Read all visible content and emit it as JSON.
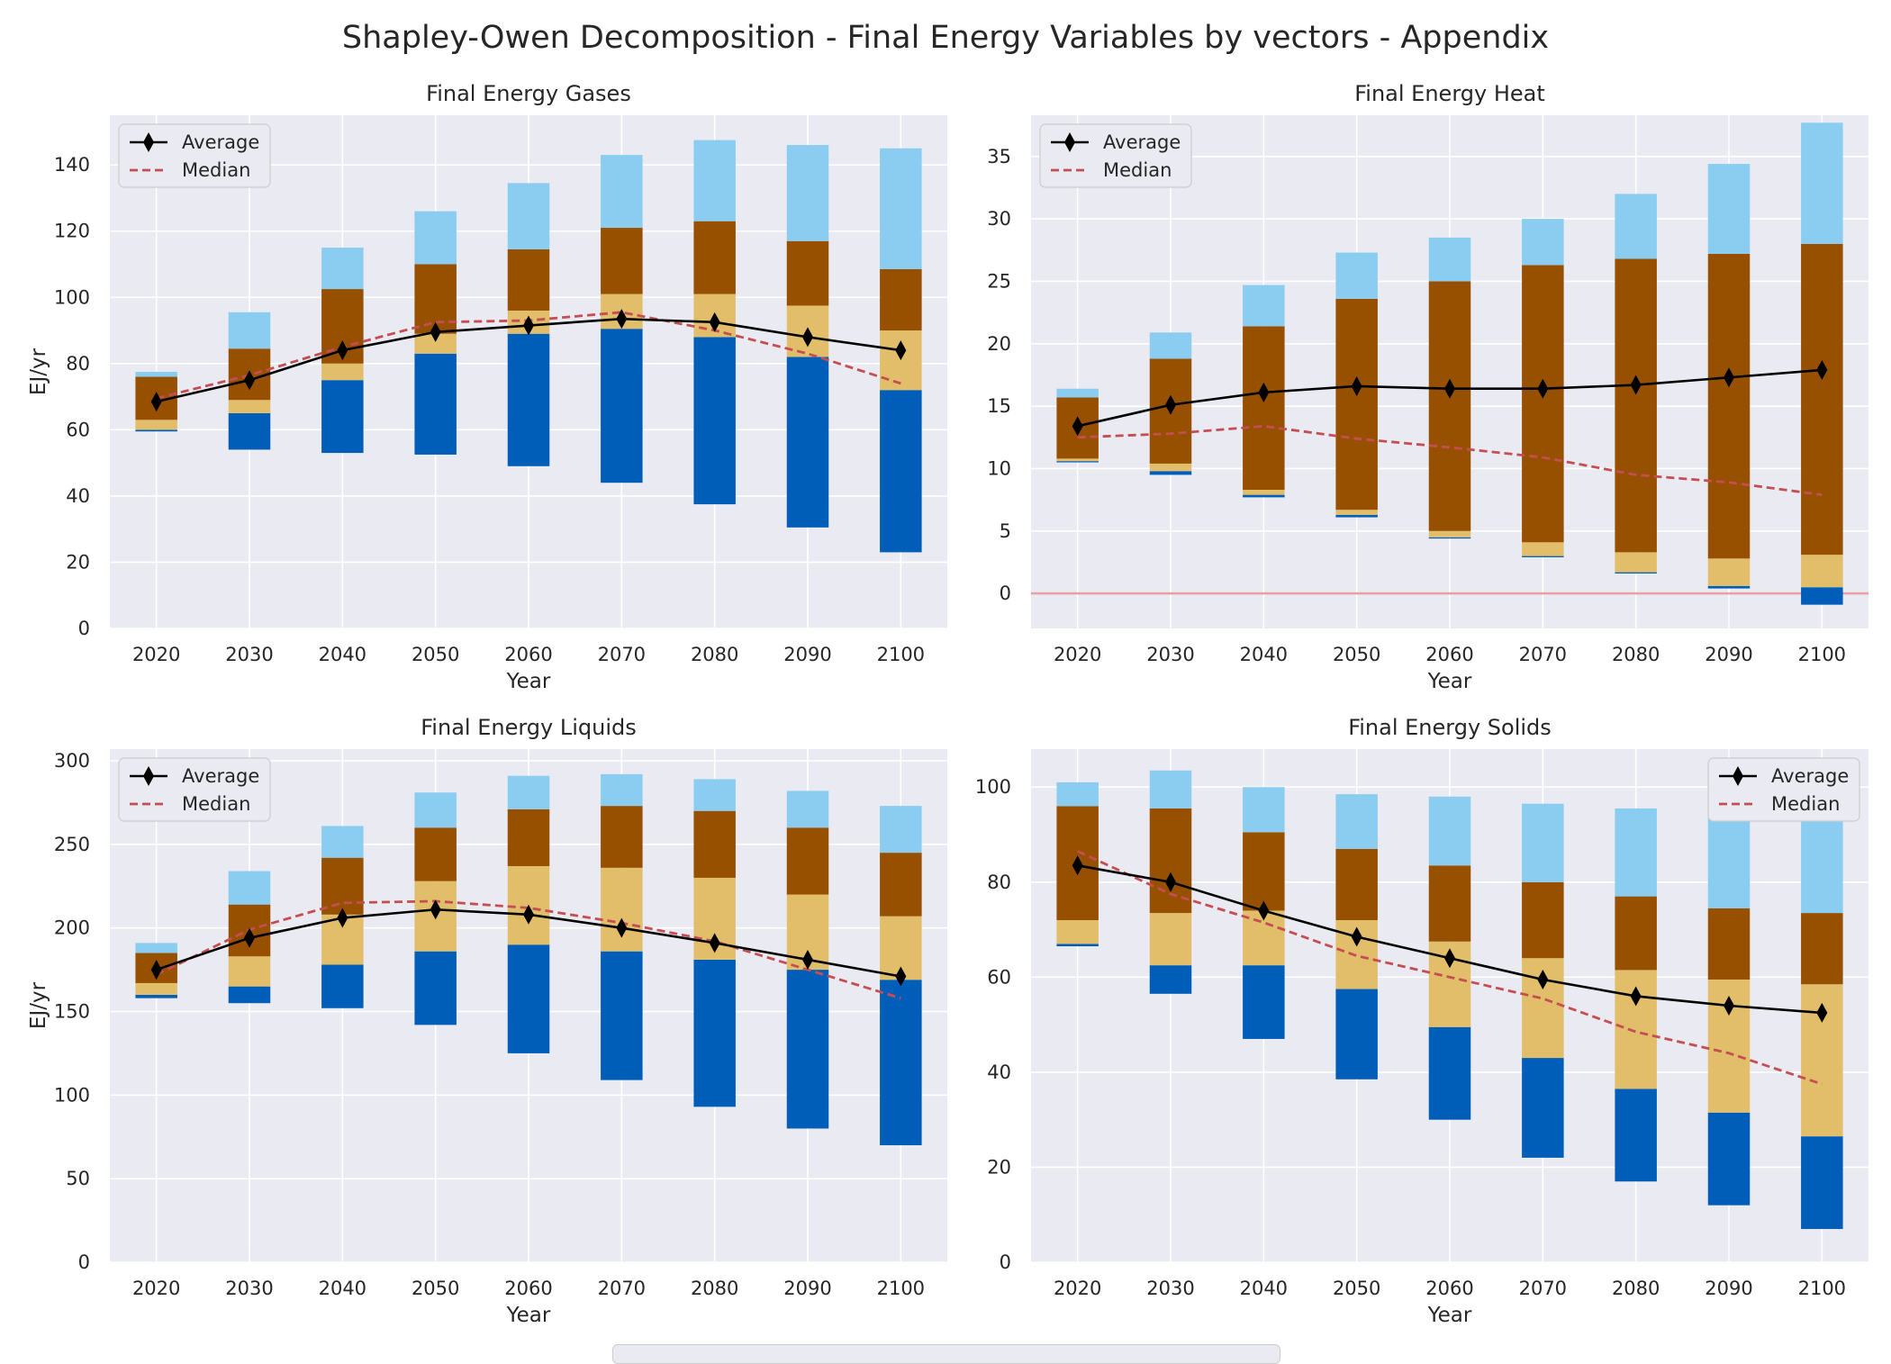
{
  "title": "Shapley-Owen Decomposition - Final Energy Variables by vectors - Appendix",
  "colors": {
    "panel_bg": "#EAEAF2",
    "grid": "#FFFFFF",
    "dark_blue": "#005EB8",
    "tan": "#E2BE6B",
    "brown": "#974F00",
    "light_blue": "#8ACDF0",
    "average_line": "#000000",
    "median_line": "#C44E52",
    "zero_line": "#E8A0A0"
  },
  "chart_data": [
    {
      "type": "bar",
      "title": "Final Energy Gases",
      "xlabel": "Year",
      "ylabel": "EJ/yr",
      "categories": [
        "2020",
        "2030",
        "2040",
        "2050",
        "2060",
        "2070",
        "2080",
        "2090",
        "2100"
      ],
      "ylim": [
        0,
        155
      ],
      "yticks": [
        0,
        20,
        40,
        60,
        80,
        100,
        120,
        140
      ],
      "grid": true,
      "legend_placement": "top-left",
      "stacks": [
        {
          "color": "dark_blue",
          "ranges": [
            [
              59.5,
              60
            ],
            [
              54,
              65
            ],
            [
              53,
              75
            ],
            [
              52.5,
              83
            ],
            [
              49,
              89
            ],
            [
              44,
              90.5
            ],
            [
              37.5,
              88
            ],
            [
              30.5,
              82
            ],
            [
              23,
              72
            ]
          ]
        },
        {
          "color": "tan",
          "ranges": [
            [
              60,
              63
            ],
            [
              65,
              69
            ],
            [
              75,
              80
            ],
            [
              83,
              89
            ],
            [
              89,
              96
            ],
            [
              90.5,
              101
            ],
            [
              88,
              101
            ],
            [
              82,
              97.5
            ],
            [
              72,
              90
            ]
          ]
        },
        {
          "color": "brown",
          "ranges": [
            [
              63,
              76
            ],
            [
              69,
              84.5
            ],
            [
              80,
              102.5
            ],
            [
              89,
              110
            ],
            [
              96,
              114.5
            ],
            [
              101,
              121
            ],
            [
              101,
              123
            ],
            [
              97.5,
              117
            ],
            [
              90,
              108.5
            ]
          ]
        },
        {
          "color": "light_blue",
          "ranges": [
            [
              76,
              77.5
            ],
            [
              84.5,
              95.5
            ],
            [
              102.5,
              115
            ],
            [
              110,
              126
            ],
            [
              114.5,
              134.5
            ],
            [
              121,
              143
            ],
            [
              123,
              147.5
            ],
            [
              117,
              146
            ],
            [
              108.5,
              145
            ]
          ]
        }
      ],
      "series": [
        {
          "name": "Average",
          "values": [
            68.5,
            75,
            84,
            89.5,
            91.5,
            93.5,
            92.5,
            88,
            84
          ]
        },
        {
          "name": "Median",
          "values": [
            69.5,
            76.5,
            85,
            92.5,
            93,
            95.5,
            90,
            83,
            74
          ]
        }
      ]
    },
    {
      "type": "bar",
      "title": "Final Energy Heat",
      "xlabel": "Year",
      "ylabel": "",
      "categories": [
        "2020",
        "2030",
        "2040",
        "2050",
        "2060",
        "2070",
        "2080",
        "2090",
        "2100"
      ],
      "ylim": [
        -2.8,
        38.3
      ],
      "yticks": [
        0,
        5,
        10,
        15,
        20,
        25,
        30,
        35
      ],
      "grid": true,
      "zero_line": true,
      "legend_placement": "top-left",
      "stacks": [
        {
          "color": "dark_blue",
          "ranges": [
            [
              10.5,
              10.6
            ],
            [
              9.5,
              9.8
            ],
            [
              7.7,
              7.9
            ],
            [
              6.1,
              6.3
            ],
            [
              4.4,
              4.5
            ],
            [
              2.9,
              3.0
            ],
            [
              1.6,
              1.7
            ],
            [
              0.4,
              0.6
            ],
            [
              -0.9,
              0.5
            ]
          ]
        },
        {
          "color": "tan",
          "ranges": [
            [
              10.6,
              10.8
            ],
            [
              9.8,
              10.4
            ],
            [
              7.9,
              8.3
            ],
            [
              6.3,
              6.7
            ],
            [
              4.5,
              5.0
            ],
            [
              3.0,
              4.1
            ],
            [
              1.7,
              3.3
            ],
            [
              0.6,
              2.8
            ],
            [
              0.5,
              3.1
            ]
          ]
        },
        {
          "color": "brown",
          "ranges": [
            [
              10.8,
              15.7
            ],
            [
              10.4,
              18.8
            ],
            [
              8.3,
              21.4
            ],
            [
              6.7,
              23.6
            ],
            [
              5.0,
              25.0
            ],
            [
              4.1,
              26.3
            ],
            [
              3.3,
              26.8
            ],
            [
              2.8,
              27.2
            ],
            [
              3.1,
              28.0
            ]
          ]
        },
        {
          "color": "light_blue",
          "ranges": [
            [
              15.7,
              16.4
            ],
            [
              18.8,
              20.9
            ],
            [
              21.4,
              24.7
            ],
            [
              23.6,
              27.3
            ],
            [
              25.0,
              28.5
            ],
            [
              26.3,
              30.0
            ],
            [
              26.8,
              32.0
            ],
            [
              27.2,
              34.4
            ],
            [
              28.0,
              37.7
            ]
          ]
        }
      ],
      "series": [
        {
          "name": "Average",
          "values": [
            13.4,
            15.1,
            16.1,
            16.6,
            16.4,
            16.4,
            16.7,
            17.3,
            17.9
          ]
        },
        {
          "name": "Median",
          "values": [
            12.5,
            12.8,
            13.4,
            12.4,
            11.7,
            10.9,
            9.5,
            8.9,
            7.9
          ]
        }
      ]
    },
    {
      "type": "bar",
      "title": "Final Energy Liquids",
      "xlabel": "Year",
      "ylabel": "EJ/yr",
      "categories": [
        "2020",
        "2030",
        "2040",
        "2050",
        "2060",
        "2070",
        "2080",
        "2090",
        "2100"
      ],
      "ylim": [
        0,
        307
      ],
      "yticks": [
        0,
        50,
        100,
        150,
        200,
        250,
        300
      ],
      "grid": true,
      "legend_placement": "top-left",
      "stacks": [
        {
          "color": "dark_blue",
          "ranges": [
            [
              158,
              160
            ],
            [
              155,
              165
            ],
            [
              152,
              178
            ],
            [
              142,
              186
            ],
            [
              125,
              190
            ],
            [
              109,
              186
            ],
            [
              93,
              181
            ],
            [
              80,
              175
            ],
            [
              70,
              169
            ]
          ]
        },
        {
          "color": "tan",
          "ranges": [
            [
              160,
              167
            ],
            [
              165,
              183
            ],
            [
              178,
              208
            ],
            [
              186,
              228
            ],
            [
              190,
              237
            ],
            [
              186,
              236
            ],
            [
              181,
              230
            ],
            [
              175,
              220
            ],
            [
              169,
              207
            ]
          ]
        },
        {
          "color": "brown",
          "ranges": [
            [
              167,
              185
            ],
            [
              183,
              214
            ],
            [
              208,
              242
            ],
            [
              228,
              260
            ],
            [
              237,
              271
            ],
            [
              236,
              273
            ],
            [
              230,
              270
            ],
            [
              220,
              260
            ],
            [
              207,
              245
            ]
          ]
        },
        {
          "color": "light_blue",
          "ranges": [
            [
              185,
              191
            ],
            [
              214,
              234
            ],
            [
              242,
              261
            ],
            [
              260,
              281
            ],
            [
              271,
              291
            ],
            [
              273,
              292
            ],
            [
              270,
              289
            ],
            [
              260,
              282
            ],
            [
              245,
              273
            ]
          ]
        }
      ],
      "series": [
        {
          "name": "Average",
          "values": [
            175,
            194,
            206,
            211,
            208,
            200,
            191,
            181,
            171
          ]
        },
        {
          "name": "Median",
          "values": [
            172,
            199,
            215,
            216,
            212,
            203,
            192,
            175,
            158
          ]
        }
      ]
    },
    {
      "type": "bar",
      "title": "Final Energy Solids",
      "xlabel": "Year",
      "ylabel": "",
      "categories": [
        "2020",
        "2030",
        "2040",
        "2050",
        "2060",
        "2070",
        "2080",
        "2090",
        "2100"
      ],
      "ylim": [
        0,
        108
      ],
      "yticks": [
        0,
        20,
        40,
        60,
        80,
        100
      ],
      "grid": true,
      "legend_placement": "top-right",
      "stacks": [
        {
          "color": "dark_blue",
          "ranges": [
            [
              66.5,
              67
            ],
            [
              56.5,
              62.5
            ],
            [
              47,
              62.5
            ],
            [
              38.5,
              57.5
            ],
            [
              30,
              49.5
            ],
            [
              22,
              43
            ],
            [
              17,
              36.5
            ],
            [
              12,
              31.5
            ],
            [
              7,
              26.5
            ]
          ]
        },
        {
          "color": "tan",
          "ranges": [
            [
              67,
              72
            ],
            [
              62.5,
              73.5
            ],
            [
              62.5,
              74
            ],
            [
              57.5,
              72
            ],
            [
              49.5,
              67.5
            ],
            [
              43,
              64
            ],
            [
              36.5,
              61.5
            ],
            [
              31.5,
              59.5
            ],
            [
              26.5,
              58.5
            ]
          ]
        },
        {
          "color": "brown",
          "ranges": [
            [
              72,
              96
            ],
            [
              73.5,
              95.5
            ],
            [
              74,
              90.5
            ],
            [
              72,
              87
            ],
            [
              67.5,
              83.5
            ],
            [
              64,
              80
            ],
            [
              61.5,
              77
            ],
            [
              59.5,
              74.5
            ],
            [
              58.5,
              73.5
            ]
          ]
        },
        {
          "color": "light_blue",
          "ranges": [
            [
              96,
              101
            ],
            [
              95.5,
              103.5
            ],
            [
              90.5,
              100
            ],
            [
              87,
              98.5
            ],
            [
              83.5,
              98
            ],
            [
              80,
              96.5
            ],
            [
              77,
              95.5
            ],
            [
              74.5,
              94
            ],
            [
              73.5,
              94
            ]
          ]
        }
      ],
      "series": [
        {
          "name": "Average",
          "values": [
            83.5,
            80,
            74,
            68.5,
            64,
            59.5,
            56,
            54,
            52.5
          ]
        },
        {
          "name": "Median",
          "values": [
            86.5,
            77.5,
            71.5,
            64.5,
            60,
            55.5,
            48.5,
            44,
            37.5
          ]
        }
      ]
    }
  ]
}
